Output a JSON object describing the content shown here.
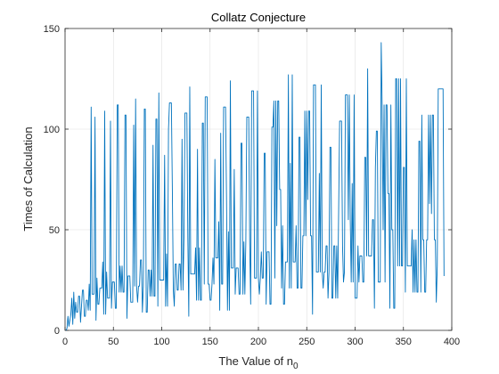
{
  "chart_data": {
    "type": "line",
    "title": "Collatz Conjecture",
    "xlabel": "The Value of n",
    "xlabel_subscript": "0",
    "ylabel": "Times of Calculation",
    "xlim": [
      0,
      400
    ],
    "ylim": [
      0,
      150
    ],
    "xticks": [
      0,
      50,
      100,
      150,
      200,
      250,
      300,
      350,
      400
    ],
    "yticks": [
      0,
      50,
      100,
      150
    ],
    "grid": true,
    "legend": "none",
    "line_color": "#0072BD",
    "x_range": [
      1,
      400
    ],
    "series": [
      {
        "values": [
          0,
          1,
          7,
          2,
          5,
          8,
          16,
          3,
          19,
          6,
          14,
          9,
          9,
          17,
          17,
          4,
          12,
          20,
          20,
          7,
          7,
          15,
          15,
          10,
          23,
          10,
          111,
          18,
          18,
          18,
          106,
          5,
          26,
          13,
          13,
          21,
          21,
          21,
          34,
          8,
          109,
          8,
          29,
          16,
          16,
          16,
          104,
          11,
          24,
          24,
          24,
          11,
          11,
          112,
          112,
          19,
          32,
          19,
          32,
          19,
          19,
          107,
          107,
          6,
          27,
          27,
          27,
          14,
          14,
          14,
          102,
          22,
          115,
          22,
          14,
          22,
          22,
          35,
          35,
          9,
          22,
          110,
          110,
          9,
          9,
          30,
          30,
          17,
          30,
          17,
          92,
          17,
          17,
          105,
          105,
          12,
          118,
          25,
          25,
          25,
          25,
          25,
          87,
          12,
          38,
          12,
          100,
          113,
          113,
          113,
          69,
          20,
          12,
          33,
          33,
          20,
          20,
          33,
          33,
          20,
          95,
          20,
          46,
          108,
          108,
          108,
          46,
          7,
          121,
          28,
          28,
          28,
          28,
          28,
          41,
          15,
          90,
          15,
          41,
          15,
          15,
          103,
          103,
          23,
          116,
          116,
          116,
          23,
          23,
          15,
          15,
          23,
          36,
          23,
          85,
          36,
          36,
          36,
          54,
          10,
          98,
          23,
          23,
          111,
          111,
          111,
          67,
          10,
          49,
          10,
          124,
          31,
          31,
          31,
          80,
          18,
          31,
          31,
          31,
          18,
          18,
          93,
          93,
          18,
          44,
          18,
          44,
          106,
          106,
          106,
          44,
          13,
          119,
          119,
          119,
          26,
          26,
          26,
          119,
          26,
          18,
          26,
          39,
          26,
          26,
          88,
          88,
          13,
          39,
          39,
          39,
          13,
          13,
          101,
          101,
          114,
          26,
          114,
          52,
          114,
          114,
          70,
          70,
          21,
          52,
          13,
          13,
          34,
          34,
          34,
          127,
          21,
          83,
          21,
          127,
          34,
          34,
          34,
          52,
          21,
          21,
          96,
          96,
          21,
          21,
          47,
          47,
          109,
          47,
          109,
          65,
          109,
          109,
          47,
          47,
          8,
          122,
          122,
          122,
          29,
          29,
          29,
          78,
          29,
          122,
          29,
          21,
          29,
          29,
          42,
          42,
          16,
          29,
          91,
          91,
          16,
          16,
          42,
          42,
          16,
          42,
          16,
          60,
          104,
          104,
          104,
          42,
          24,
          29,
          117,
          117,
          117,
          55,
          117,
          55,
          24,
          73,
          24,
          117,
          16,
          16,
          16,
          42,
          24,
          37,
          37,
          37,
          24,
          24,
          86,
          86,
          37,
          130,
          37,
          37,
          37,
          37,
          55,
          55,
          11,
          81,
          99,
          99,
          24,
          24,
          24,
          143,
          112,
          50,
          112,
          24,
          112,
          112,
          68,
          68,
          11,
          112,
          50,
          50,
          11,
          11,
          125,
          125,
          32,
          125,
          32,
          125,
          32,
          32,
          81,
          81,
          19,
          125,
          32,
          32,
          32,
          32,
          32,
          50,
          19,
          45,
          19,
          45,
          19,
          19,
          94,
          94,
          19,
          107,
          45,
          45,
          19,
          19,
          45,
          45,
          107,
          63,
          107,
          58,
          107,
          107,
          45,
          45,
          14,
          32,
          120,
          120,
          120,
          120,
          120,
          120,
          27
        ]
      }
    ]
  }
}
